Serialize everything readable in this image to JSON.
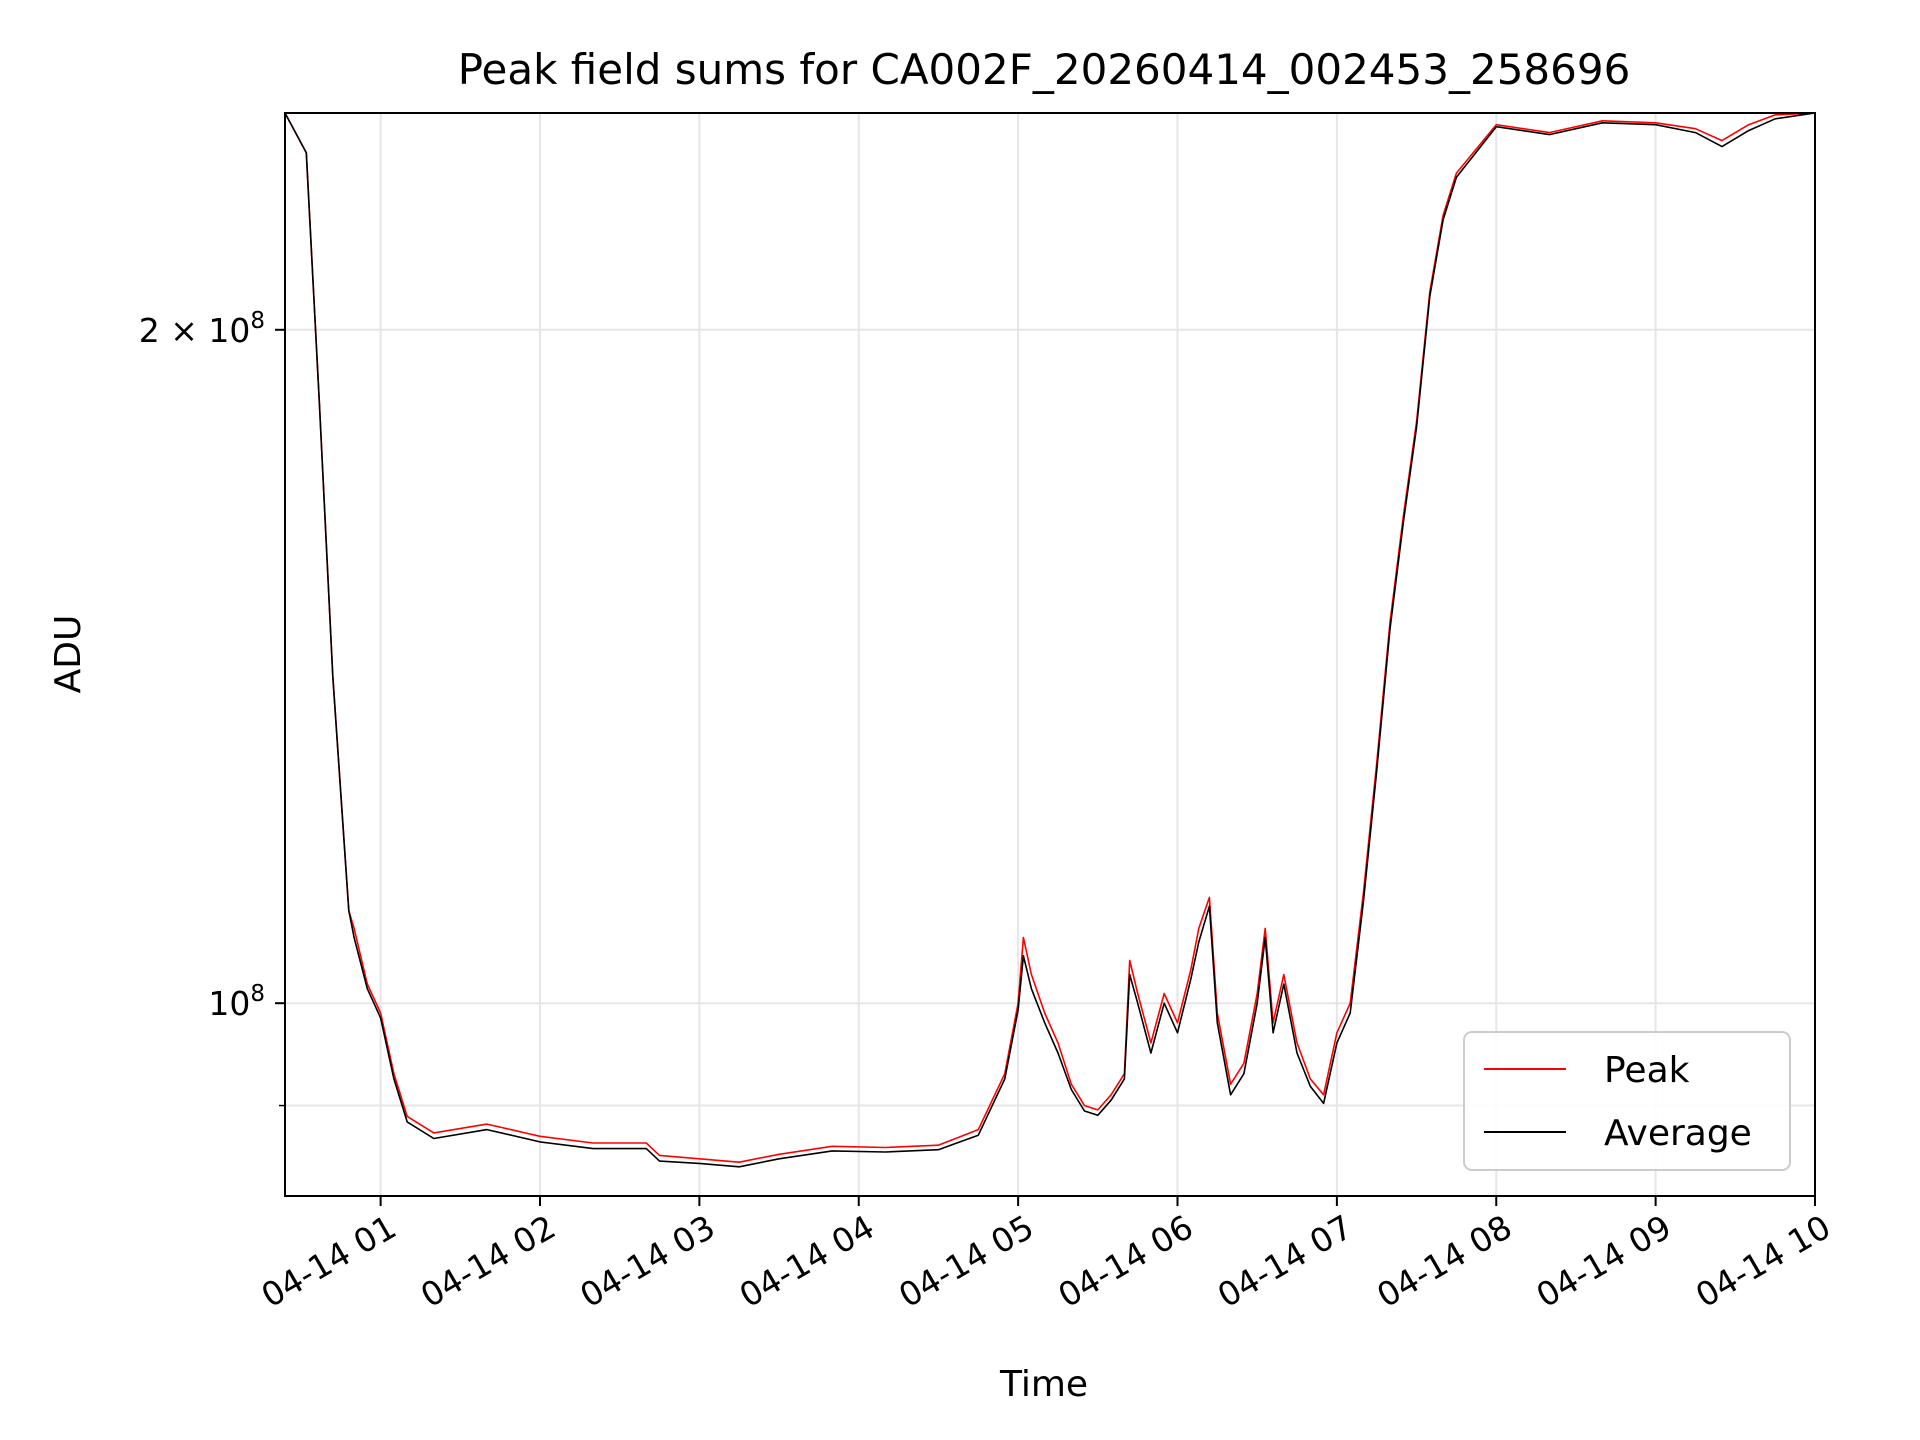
{
  "chart_data": {
    "type": "line",
    "title": "Peak field sums for CA002F_20260414_002453_258696",
    "xlabel": "Time",
    "ylabel": "ADU",
    "yscale": "log",
    "grid": true,
    "legend_position": "lower-right",
    "colors": {
      "Peak": "#ff0000",
      "Average": "#000000",
      "grid": "#e6e6e6"
    },
    "xlim": [
      "2026-04-14 00:24",
      "2026-04-14 10:00"
    ],
    "ylim": [
      82000000,
      250000000
    ],
    "x_ticks": [
      {
        "t": "2026-04-14 01:00",
        "label": "04-14 01"
      },
      {
        "t": "2026-04-14 02:00",
        "label": "04-14 02"
      },
      {
        "t": "2026-04-14 03:00",
        "label": "04-14 03"
      },
      {
        "t": "2026-04-14 04:00",
        "label": "04-14 04"
      },
      {
        "t": "2026-04-14 05:00",
        "label": "04-14 05"
      },
      {
        "t": "2026-04-14 06:00",
        "label": "04-14 06"
      },
      {
        "t": "2026-04-14 07:00",
        "label": "04-14 07"
      },
      {
        "t": "2026-04-14 08:00",
        "label": "04-14 08"
      },
      {
        "t": "2026-04-14 09:00",
        "label": "04-14 09"
      },
      {
        "t": "2026-04-14 10:00",
        "label": "04-14 10"
      }
    ],
    "y_ticks": [
      {
        "value": 200000000,
        "mantissa": "2",
        "times": "×",
        "base": "10",
        "exp": "8"
      },
      {
        "value": 100000000,
        "mantissa": "",
        "times": "",
        "base": "10",
        "exp": "8"
      }
    ],
    "y_minor_ticks": [
      90000000
    ],
    "series": [
      {
        "name": "Peak",
        "points": [
          [
            "2026-04-14 00:24",
            250000000
          ],
          [
            "2026-04-14 00:32",
            240000000
          ],
          [
            "2026-04-14 00:37",
            185000000
          ],
          [
            "2026-04-14 00:42",
            140000000
          ],
          [
            "2026-04-14 00:48",
            110000000
          ],
          [
            "2026-04-14 00:50",
            108000000
          ],
          [
            "2026-04-14 00:55",
            102000000
          ],
          [
            "2026-04-14 01:00",
            99000000
          ],
          [
            "2026-04-14 01:05",
            93000000
          ],
          [
            "2026-04-14 01:10",
            89000000
          ],
          [
            "2026-04-14 01:20",
            87500000
          ],
          [
            "2026-04-14 01:40",
            88300000
          ],
          [
            "2026-04-14 02:00",
            87200000
          ],
          [
            "2026-04-14 02:20",
            86600000
          ],
          [
            "2026-04-14 02:40",
            86600000
          ],
          [
            "2026-04-14 02:45",
            85500000
          ],
          [
            "2026-04-14 03:00",
            85200000
          ],
          [
            "2026-04-14 03:15",
            84900000
          ],
          [
            "2026-04-14 03:30",
            85600000
          ],
          [
            "2026-04-14 03:50",
            86300000
          ],
          [
            "2026-04-14 04:10",
            86200000
          ],
          [
            "2026-04-14 04:30",
            86400000
          ],
          [
            "2026-04-14 04:45",
            87800000
          ],
          [
            "2026-04-14 04:55",
            93000000
          ],
          [
            "2026-04-14 05:00",
            100000000
          ],
          [
            "2026-04-14 05:02",
            107000000
          ],
          [
            "2026-04-14 05:05",
            103000000
          ],
          [
            "2026-04-14 05:10",
            99000000
          ],
          [
            "2026-04-14 05:15",
            96000000
          ],
          [
            "2026-04-14 05:20",
            92000000
          ],
          [
            "2026-04-14 05:25",
            90000000
          ],
          [
            "2026-04-14 05:30",
            89600000
          ],
          [
            "2026-04-14 05:35",
            91000000
          ],
          [
            "2026-04-14 05:40",
            93000000
          ],
          [
            "2026-04-14 05:42",
            104500000
          ],
          [
            "2026-04-14 05:45",
            101000000
          ],
          [
            "2026-04-14 05:50",
            96000000
          ],
          [
            "2026-04-14 05:55",
            101000000
          ],
          [
            "2026-04-14 06:00",
            98000000
          ],
          [
            "2026-04-14 06:05",
            103500000
          ],
          [
            "2026-04-14 06:08",
            108000000
          ],
          [
            "2026-04-14 06:12",
            111500000
          ],
          [
            "2026-04-14 06:15",
            99000000
          ],
          [
            "2026-04-14 06:20",
            92000000
          ],
          [
            "2026-04-14 06:25",
            94000000
          ],
          [
            "2026-04-14 06:30",
            101000000
          ],
          [
            "2026-04-14 06:33",
            108000000
          ],
          [
            "2026-04-14 06:36",
            98000000
          ],
          [
            "2026-04-14 06:40",
            103000000
          ],
          [
            "2026-04-14 06:45",
            96000000
          ],
          [
            "2026-04-14 06:50",
            92500000
          ],
          [
            "2026-04-14 06:55",
            91000000
          ],
          [
            "2026-04-14 07:00",
            97000000
          ],
          [
            "2026-04-14 07:05",
            100000000
          ],
          [
            "2026-04-14 07:10",
            112000000
          ],
          [
            "2026-04-14 07:15",
            128000000
          ],
          [
            "2026-04-14 07:20",
            148000000
          ],
          [
            "2026-04-14 07:25",
            165000000
          ],
          [
            "2026-04-14 07:30",
            182000000
          ],
          [
            "2026-04-14 07:35",
            208000000
          ],
          [
            "2026-04-14 07:40",
            225000000
          ],
          [
            "2026-04-14 07:45",
            235000000
          ],
          [
            "2026-04-14 08:00",
            247000000
          ],
          [
            "2026-04-14 08:20",
            245000000
          ],
          [
            "2026-04-14 08:40",
            248000000
          ],
          [
            "2026-04-14 09:00",
            247500000
          ],
          [
            "2026-04-14 09:15",
            246000000
          ],
          [
            "2026-04-14 09:25",
            243000000
          ],
          [
            "2026-04-14 09:35",
            247000000
          ],
          [
            "2026-04-14 09:45",
            249500000
          ],
          [
            "2026-04-14 10:00",
            250000000
          ]
        ]
      },
      {
        "name": "Average",
        "points": [
          [
            "2026-04-14 00:24",
            250000000
          ],
          [
            "2026-04-14 00:32",
            240000000
          ],
          [
            "2026-04-14 00:37",
            185000000
          ],
          [
            "2026-04-14 00:42",
            140000000
          ],
          [
            "2026-04-14 00:48",
            110000000
          ],
          [
            "2026-04-14 00:50",
            107000000
          ],
          [
            "2026-04-14 00:55",
            101500000
          ],
          [
            "2026-04-14 01:00",
            98500000
          ],
          [
            "2026-04-14 01:05",
            92500000
          ],
          [
            "2026-04-14 01:10",
            88500000
          ],
          [
            "2026-04-14 01:20",
            87000000
          ],
          [
            "2026-04-14 01:40",
            87800000
          ],
          [
            "2026-04-14 02:00",
            86700000
          ],
          [
            "2026-04-14 02:20",
            86100000
          ],
          [
            "2026-04-14 02:40",
            86100000
          ],
          [
            "2026-04-14 02:45",
            85000000
          ],
          [
            "2026-04-14 03:00",
            84800000
          ],
          [
            "2026-04-14 03:15",
            84500000
          ],
          [
            "2026-04-14 03:30",
            85200000
          ],
          [
            "2026-04-14 03:50",
            85900000
          ],
          [
            "2026-04-14 04:10",
            85800000
          ],
          [
            "2026-04-14 04:30",
            86000000
          ],
          [
            "2026-04-14 04:45",
            87300000
          ],
          [
            "2026-04-14 04:55",
            92500000
          ],
          [
            "2026-04-14 05:00",
            99300000
          ],
          [
            "2026-04-14 05:02",
            105000000
          ],
          [
            "2026-04-14 05:05",
            101500000
          ],
          [
            "2026-04-14 05:10",
            98000000
          ],
          [
            "2026-04-14 05:15",
            95000000
          ],
          [
            "2026-04-14 05:20",
            91500000
          ],
          [
            "2026-04-14 05:25",
            89500000
          ],
          [
            "2026-04-14 05:30",
            89100000
          ],
          [
            "2026-04-14 05:35",
            90500000
          ],
          [
            "2026-04-14 05:40",
            92500000
          ],
          [
            "2026-04-14 05:42",
            103000000
          ],
          [
            "2026-04-14 05:45",
            100000000
          ],
          [
            "2026-04-14 05:50",
            95000000
          ],
          [
            "2026-04-14 05:55",
            100000000
          ],
          [
            "2026-04-14 06:00",
            97000000
          ],
          [
            "2026-04-14 06:05",
            102500000
          ],
          [
            "2026-04-14 06:08",
            106500000
          ],
          [
            "2026-04-14 06:12",
            110500000
          ],
          [
            "2026-04-14 06:15",
            98000000
          ],
          [
            "2026-04-14 06:20",
            91000000
          ],
          [
            "2026-04-14 06:25",
            93000000
          ],
          [
            "2026-04-14 06:30",
            100000000
          ],
          [
            "2026-04-14 06:33",
            107000000
          ],
          [
            "2026-04-14 06:36",
            97000000
          ],
          [
            "2026-04-14 06:40",
            102000000
          ],
          [
            "2026-04-14 06:45",
            95000000
          ],
          [
            "2026-04-14 06:50",
            91800000
          ],
          [
            "2026-04-14 06:55",
            90200000
          ],
          [
            "2026-04-14 07:00",
            96000000
          ],
          [
            "2026-04-14 07:05",
            99000000
          ],
          [
            "2026-04-14 07:10",
            111000000
          ],
          [
            "2026-04-14 07:15",
            127000000
          ],
          [
            "2026-04-14 07:20",
            147000000
          ],
          [
            "2026-04-14 07:25",
            164000000
          ],
          [
            "2026-04-14 07:30",
            181000000
          ],
          [
            "2026-04-14 07:35",
            207000000
          ],
          [
            "2026-04-14 07:40",
            224000000
          ],
          [
            "2026-04-14 07:45",
            234000000
          ],
          [
            "2026-04-14 08:00",
            246500000
          ],
          [
            "2026-04-14 08:20",
            244500000
          ],
          [
            "2026-04-14 08:40",
            247500000
          ],
          [
            "2026-04-14 09:00",
            247000000
          ],
          [
            "2026-04-14 09:15",
            245000000
          ],
          [
            "2026-04-14 09:25",
            241500000
          ],
          [
            "2026-04-14 09:35",
            245500000
          ],
          [
            "2026-04-14 09:45",
            248500000
          ],
          [
            "2026-04-14 10:00",
            250000000
          ]
        ]
      }
    ]
  }
}
